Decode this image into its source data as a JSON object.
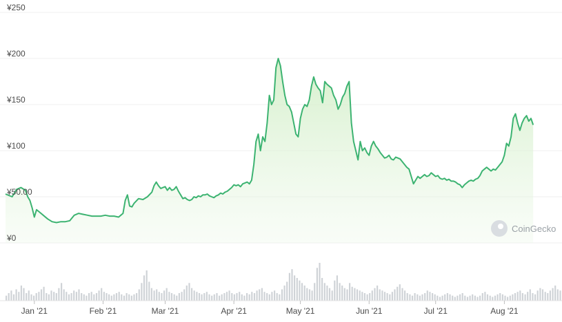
{
  "chart_data": {
    "type": "area",
    "currency_symbol": "¥",
    "y_ticks": [
      "¥250",
      "¥200",
      "¥150",
      "¥100",
      "¥50.00",
      "¥0"
    ],
    "ylim": [
      0,
      250
    ],
    "x_ticks": [
      {
        "label": "Jan '21",
        "day": 3
      },
      {
        "label": "Feb '21",
        "day": 34
      },
      {
        "label": "Mar '21",
        "day": 62
      },
      {
        "label": "Apr '21",
        "day": 93
      },
      {
        "label": "May '21",
        "day": 123
      },
      {
        "label": "Jun '21",
        "day": 154
      },
      {
        "label": "Jul '21",
        "day": 184
      },
      {
        "label": "Aug '21",
        "day": 215
      }
    ],
    "x_range_days": [
      -10,
      241
    ],
    "series": [
      {
        "line_color": "#3cb371",
        "fill_color": "#e6f6e1",
        "values": [
          [
            -10,
            53
          ],
          [
            -7,
            50
          ],
          [
            -5,
            58
          ],
          [
            -3,
            60
          ],
          [
            -1,
            57
          ],
          [
            0,
            50
          ],
          [
            1,
            46
          ],
          [
            2,
            38
          ],
          [
            3,
            28
          ],
          [
            4,
            36
          ],
          [
            5,
            34
          ],
          [
            7,
            30
          ],
          [
            9,
            26
          ],
          [
            11,
            23
          ],
          [
            13,
            22
          ],
          [
            15,
            23
          ],
          [
            17,
            23
          ],
          [
            19,
            24
          ],
          [
            21,
            30
          ],
          [
            23,
            32
          ],
          [
            25,
            31
          ],
          [
            27,
            30
          ],
          [
            29,
            29
          ],
          [
            31,
            29
          ],
          [
            33,
            29
          ],
          [
            35,
            30
          ],
          [
            37,
            29
          ],
          [
            39,
            29
          ],
          [
            41,
            28
          ],
          [
            42,
            30
          ],
          [
            43,
            32
          ],
          [
            44,
            46
          ],
          [
            45,
            52
          ],
          [
            46,
            40
          ],
          [
            47,
            39
          ],
          [
            48,
            43
          ],
          [
            50,
            48
          ],
          [
            52,
            47
          ],
          [
            54,
            50
          ],
          [
            56,
            55
          ],
          [
            57,
            62
          ],
          [
            58,
            66
          ],
          [
            59,
            62
          ],
          [
            60,
            59
          ],
          [
            61,
            60
          ],
          [
            62,
            61
          ],
          [
            63,
            57
          ],
          [
            64,
            60
          ],
          [
            65,
            57
          ],
          [
            66,
            58
          ],
          [
            67,
            61
          ],
          [
            68,
            56
          ],
          [
            69,
            52
          ],
          [
            70,
            48
          ],
          [
            71,
            49
          ],
          [
            72,
            47
          ],
          [
            73,
            46
          ],
          [
            74,
            47
          ],
          [
            75,
            50
          ],
          [
            76,
            49
          ],
          [
            77,
            51
          ],
          [
            78,
            50
          ],
          [
            79,
            52
          ],
          [
            80,
            52
          ],
          [
            81,
            53
          ],
          [
            82,
            51
          ],
          [
            83,
            50
          ],
          [
            84,
            49
          ],
          [
            85,
            51
          ],
          [
            86,
            52
          ],
          [
            87,
            54
          ],
          [
            88,
            53
          ],
          [
            89,
            55
          ],
          [
            90,
            56
          ],
          [
            91,
            58
          ],
          [
            92,
            60
          ],
          [
            93,
            63
          ],
          [
            94,
            62
          ],
          [
            95,
            63
          ],
          [
            96,
            61
          ],
          [
            97,
            64
          ],
          [
            98,
            65
          ],
          [
            99,
            66
          ],
          [
            100,
            64
          ],
          [
            101,
            68
          ],
          [
            102,
            85
          ],
          [
            103,
            110
          ],
          [
            104,
            118
          ],
          [
            105,
            100
          ],
          [
            106,
            115
          ],
          [
            107,
            110
          ],
          [
            108,
            130
          ],
          [
            109,
            160
          ],
          [
            110,
            150
          ],
          [
            111,
            155
          ],
          [
            112,
            190
          ],
          [
            113,
            200
          ],
          [
            114,
            192
          ],
          [
            115,
            175
          ],
          [
            116,
            160
          ],
          [
            117,
            150
          ],
          [
            118,
            148
          ],
          [
            119,
            142
          ],
          [
            120,
            130
          ],
          [
            121,
            118
          ],
          [
            122,
            115
          ],
          [
            123,
            135
          ],
          [
            124,
            145
          ],
          [
            125,
            150
          ],
          [
            126,
            148
          ],
          [
            127,
            155
          ],
          [
            128,
            170
          ],
          [
            129,
            180
          ],
          [
            130,
            172
          ],
          [
            131,
            168
          ],
          [
            132,
            165
          ],
          [
            133,
            152
          ],
          [
            134,
            175
          ],
          [
            135,
            172
          ],
          [
            136,
            170
          ],
          [
            137,
            168
          ],
          [
            138,
            160
          ],
          [
            139,
            155
          ],
          [
            140,
            145
          ],
          [
            141,
            150
          ],
          [
            142,
            158
          ],
          [
            143,
            162
          ],
          [
            144,
            170
          ],
          [
            145,
            175
          ],
          [
            146,
            130
          ],
          [
            147,
            110
          ],
          [
            148,
            100
          ],
          [
            149,
            90
          ],
          [
            150,
            110
          ],
          [
            151,
            100
          ],
          [
            152,
            103
          ],
          [
            153,
            98
          ],
          [
            154,
            95
          ],
          [
            155,
            105
          ],
          [
            156,
            110
          ],
          [
            157,
            105
          ],
          [
            158,
            102
          ],
          [
            159,
            98
          ],
          [
            160,
            95
          ],
          [
            161,
            92
          ],
          [
            162,
            93
          ],
          [
            163,
            95
          ],
          [
            164,
            91
          ],
          [
            165,
            90
          ],
          [
            166,
            93
          ],
          [
            167,
            92
          ],
          [
            168,
            91
          ],
          [
            169,
            88
          ],
          [
            170,
            85
          ],
          [
            171,
            82
          ],
          [
            172,
            80
          ],
          [
            173,
            72
          ],
          [
            174,
            64
          ],
          [
            175,
            68
          ],
          [
            176,
            72
          ],
          [
            177,
            70
          ],
          [
            178,
            72
          ],
          [
            179,
            74
          ],
          [
            180,
            72
          ],
          [
            181,
            73
          ],
          [
            182,
            76
          ],
          [
            183,
            74
          ],
          [
            184,
            72
          ],
          [
            185,
            73
          ],
          [
            186,
            70
          ],
          [
            187,
            69
          ],
          [
            188,
            70
          ],
          [
            189,
            68
          ],
          [
            190,
            69
          ],
          [
            191,
            67
          ],
          [
            192,
            67
          ],
          [
            193,
            66
          ],
          [
            194,
            64
          ],
          [
            195,
            63
          ],
          [
            196,
            60
          ],
          [
            197,
            63
          ],
          [
            198,
            65
          ],
          [
            199,
            67
          ],
          [
            200,
            68
          ],
          [
            201,
            67
          ],
          [
            202,
            69
          ],
          [
            203,
            70
          ],
          [
            204,
            73
          ],
          [
            205,
            78
          ],
          [
            206,
            80
          ],
          [
            207,
            82
          ],
          [
            208,
            80
          ],
          [
            209,
            78
          ],
          [
            210,
            80
          ],
          [
            211,
            79
          ],
          [
            212,
            82
          ],
          [
            213,
            85
          ],
          [
            214,
            88
          ],
          [
            215,
            95
          ],
          [
            216,
            108
          ],
          [
            217,
            105
          ],
          [
            218,
            115
          ],
          [
            219,
            135
          ],
          [
            220,
            140
          ],
          [
            221,
            130
          ],
          [
            222,
            122
          ],
          [
            223,
            130
          ],
          [
            224,
            135
          ],
          [
            225,
            138
          ],
          [
            226,
            132
          ],
          [
            227,
            135
          ],
          [
            228,
            128
          ]
        ]
      }
    ],
    "volume": [
      4,
      6,
      8,
      5,
      9,
      7,
      12,
      10,
      6,
      8,
      5,
      4,
      6,
      7,
      9,
      11,
      6,
      5,
      8,
      7,
      6,
      10,
      14,
      9,
      7,
      5,
      6,
      8,
      7,
      9,
      6,
      5,
      4,
      6,
      7,
      5,
      6,
      8,
      10,
      7,
      6,
      5,
      4,
      5,
      6,
      7,
      5,
      4,
      6,
      5,
      4,
      5,
      6,
      9,
      14,
      20,
      24,
      15,
      10,
      8,
      9,
      7,
      6,
      8,
      10,
      7,
      6,
      5,
      4,
      6,
      7,
      9,
      12,
      14,
      10,
      8,
      7,
      6,
      5,
      6,
      7,
      5,
      4,
      5,
      6,
      4,
      5,
      6,
      7,
      8,
      6,
      5,
      6,
      7,
      5,
      4,
      6,
      5,
      7,
      6,
      8,
      9,
      10,
      7,
      6,
      5,
      7,
      8,
      6,
      5,
      9,
      12,
      15,
      22,
      25,
      20,
      18,
      16,
      14,
      12,
      10,
      9,
      8,
      14,
      26,
      30,
      18,
      14,
      12,
      10,
      8,
      16,
      20,
      14,
      12,
      10,
      9,
      14,
      11,
      10,
      9,
      8,
      7,
      6,
      5,
      6,
      8,
      10,
      12,
      9,
      8,
      7,
      6,
      5,
      7,
      9,
      11,
      13,
      10,
      8,
      6,
      5,
      4,
      6,
      5,
      4,
      5,
      6,
      8,
      7,
      6,
      5,
      4,
      3,
      4,
      5,
      6,
      5,
      4,
      3,
      4,
      5,
      6,
      4,
      3,
      4,
      5,
      4,
      3,
      4,
      6,
      7,
      5,
      4,
      3,
      4,
      5,
      6,
      5,
      4,
      3,
      4,
      5,
      6,
      7,
      8,
      6,
      5,
      7,
      9,
      6,
      5,
      8,
      10,
      9,
      7,
      6,
      8,
      10,
      12,
      9,
      8
    ]
  },
  "watermark": {
    "text": "CoinGecko"
  }
}
